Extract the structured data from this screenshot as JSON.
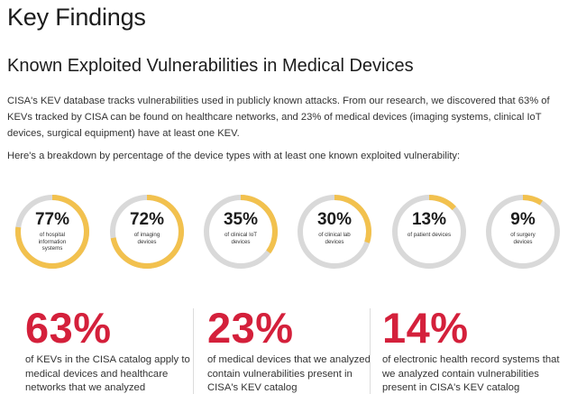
{
  "heading": "Key Findings",
  "subheading": "Known Exploited Vulnerabilities in Medical Devices",
  "paragraph1": "CISA's KEV database tracks vulnerabilities used in publicly known attacks. From our research, we discovered that 63% of KEVs tracked by CISA can be found on healthcare networks, and 23% of medical devices (imaging systems, clinical IoT devices, surgical equipment) have at least one KEV.",
  "paragraph2": "Here's a breakdown by percentage of the device types with at least one known exploited vulnerability:",
  "colors": {
    "accent": "#f2c14e",
    "track": "#d9d9d9",
    "stat": "#d4203b"
  },
  "donuts": [
    {
      "percent": 77,
      "label": "77%",
      "caption": "of hospital information systems"
    },
    {
      "percent": 72,
      "label": "72%",
      "caption": "of imaging devices"
    },
    {
      "percent": 35,
      "label": "35%",
      "caption": "of clinical IoT devices"
    },
    {
      "percent": 30,
      "label": "30%",
      "caption": "of clinical lab devices"
    },
    {
      "percent": 13,
      "label": "13%",
      "caption": "of patient devices"
    },
    {
      "percent": 9,
      "label": "9%",
      "caption": "of surgery devices"
    }
  ],
  "stats": [
    {
      "value": "63%",
      "text": "of KEVs in the CISA catalog apply to medical devices and healthcare networks that we analyzed"
    },
    {
      "value": "23%",
      "text": "of medical devices that we analyzed contain vulnerabilities present in CISA's KEV catalog"
    },
    {
      "value": "14%",
      "text": "of electronic health record systems that we analyzed contain vulnerabilities present in CISA's KEV catalog"
    }
  ]
}
